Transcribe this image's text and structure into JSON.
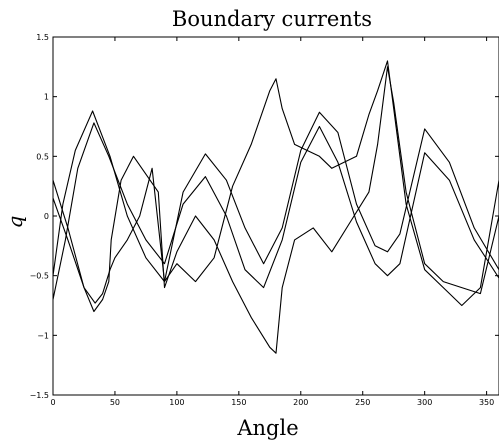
{
  "chart_data": {
    "type": "line",
    "title": "Boundary currents",
    "xlabel": "Angle",
    "ylabel": "q",
    "xlim": [
      0,
      360
    ],
    "ylim": [
      -1.5,
      1.5
    ],
    "xticks": [
      0,
      50,
      100,
      150,
      200,
      250,
      300,
      350
    ],
    "yticks": [
      -1.5,
      -1,
      -0.5,
      0,
      0.5,
      1,
      1.5
    ],
    "xtick_labels": [
      "0",
      "50",
      "100",
      "150",
      "200",
      "250",
      "300",
      "350"
    ],
    "ytick_labels": [
      "−1.5",
      "−1",
      "−0.5",
      "0",
      "0.5",
      "1",
      "1.5"
    ],
    "grid": false,
    "line_color": "#000000",
    "series": [
      {
        "x": [
          0,
          10,
          20,
          33,
          45,
          60,
          75,
          90,
          105,
          123,
          140,
          155,
          170,
          185,
          200,
          215,
          230,
          245,
          260,
          270,
          280,
          300,
          320,
          340,
          360
        ],
        "values": [
          -0.7,
          -0.2,
          0.4,
          0.78,
          0.5,
          0.1,
          -0.2,
          -0.4,
          0.1,
          0.33,
          0.0,
          -0.45,
          -0.6,
          -0.2,
          0.45,
          0.75,
          0.45,
          -0.05,
          -0.4,
          -0.5,
          -0.4,
          0.53,
          0.3,
          -0.2,
          -0.52
        ]
      },
      {
        "x": [
          0,
          8,
          18,
          32,
          46,
          60,
          75,
          90,
          105,
          123,
          140,
          155,
          170,
          185,
          200,
          215,
          230,
          245,
          260,
          270,
          280,
          300,
          320,
          340,
          360
        ],
        "values": [
          -0.5,
          0.1,
          0.55,
          0.88,
          0.5,
          0.0,
          -0.35,
          -0.55,
          0.2,
          0.52,
          0.3,
          -0.1,
          -0.4,
          -0.1,
          0.55,
          0.87,
          0.7,
          0.1,
          -0.25,
          -0.3,
          -0.15,
          0.73,
          0.45,
          -0.1,
          -0.45
        ]
      },
      {
        "x": [
          0,
          12,
          25,
          34,
          40,
          46,
          50,
          60,
          70,
          80,
          90,
          100,
          115,
          130,
          145,
          160,
          175,
          180,
          185,
          195,
          205,
          215,
          225,
          235,
          245,
          255,
          262,
          270,
          275,
          285,
          300,
          315,
          330,
          345,
          360
        ],
        "values": [
          0.3,
          -0.1,
          -0.6,
          -0.73,
          -0.65,
          -0.45,
          -0.35,
          -0.2,
          0.0,
          0.4,
          -0.55,
          -0.4,
          -0.55,
          -0.35,
          0.25,
          0.6,
          1.05,
          1.15,
          0.9,
          0.6,
          0.55,
          0.5,
          0.4,
          0.45,
          0.5,
          0.85,
          1.05,
          1.3,
          0.9,
          0.1,
          -0.45,
          -0.6,
          -0.75,
          -0.6,
          0.3
        ]
      },
      {
        "x": [
          0,
          12,
          25,
          33,
          40,
          45,
          47,
          55,
          65,
          75,
          85,
          90,
          100,
          115,
          130,
          145,
          160,
          175,
          180,
          185,
          195,
          210,
          225,
          240,
          255,
          262,
          270,
          275,
          285,
          300,
          315,
          330,
          345,
          360
        ],
        "values": [
          0.15,
          -0.2,
          -0.6,
          -0.8,
          -0.7,
          -0.55,
          -0.2,
          0.3,
          0.5,
          0.35,
          0.2,
          -0.6,
          -0.3,
          0.0,
          -0.2,
          -0.55,
          -0.85,
          -1.1,
          -1.15,
          -0.6,
          -0.2,
          -0.1,
          -0.3,
          -0.05,
          0.2,
          0.6,
          1.25,
          0.95,
          0.2,
          -0.4,
          -0.55,
          -0.6,
          -0.65,
          0.0
        ]
      }
    ]
  }
}
